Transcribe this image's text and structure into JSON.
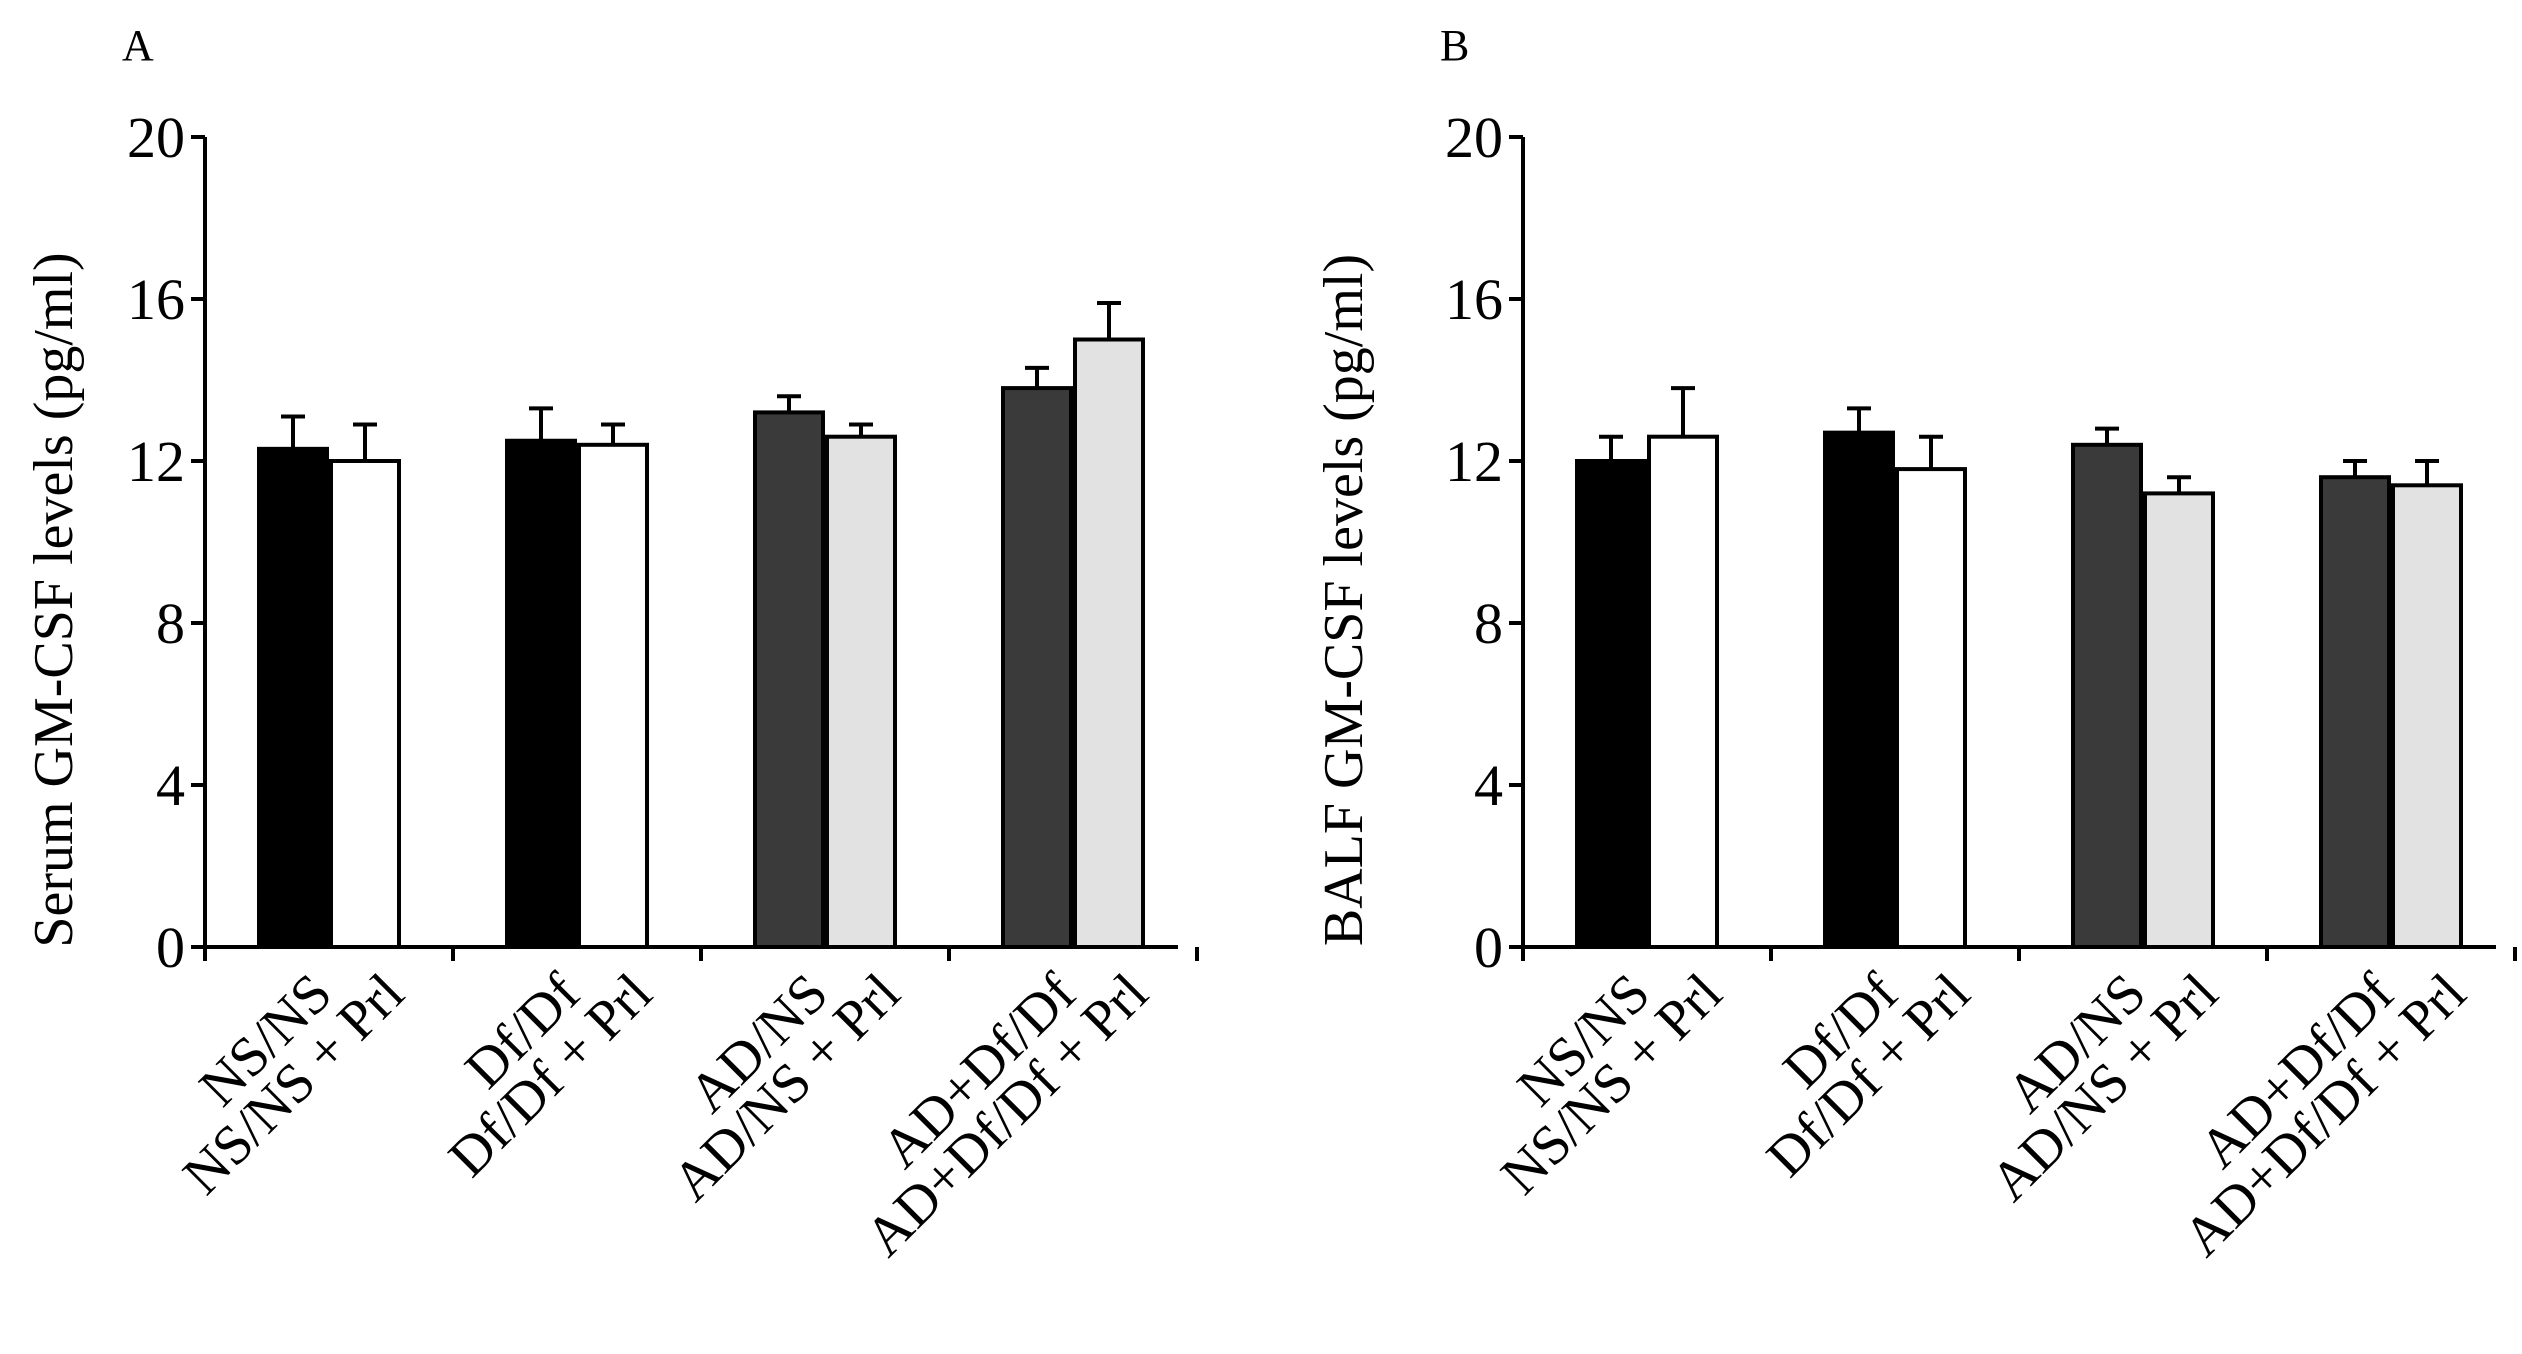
{
  "chart_data": [
    {
      "type": "bar",
      "panel": "A",
      "title": "",
      "xlabel": "",
      "ylabel": "Serum GM-CSF levels (pg/ml)",
      "ylim": [
        0,
        20
      ],
      "yticks": [
        "0",
        "4",
        "8",
        "12",
        "16",
        "20"
      ],
      "categories": [
        "NS/NS",
        "NS/NS + Prl",
        "Df/Df",
        "Df/Df + Prl",
        "AD/NS",
        "AD/NS + Prl",
        "AD+Df/Df",
        "AD+Df/Df + Prl"
      ],
      "values": [
        12.3,
        12.0,
        12.5,
        12.4,
        13.2,
        12.6,
        13.8,
        15.0
      ],
      "errors": [
        0.8,
        0.9,
        0.8,
        0.5,
        0.4,
        0.3,
        0.5,
        0.9
      ],
      "fills": [
        "#000000",
        "#ffffff",
        "#000000",
        "#ffffff",
        "#3a3a3a",
        "#e2e2e2",
        "#3a3a3a",
        "#e2e2e2"
      ],
      "grid": false
    },
    {
      "type": "bar",
      "panel": "B",
      "title": "",
      "xlabel": "",
      "ylabel": "BALF GM-CSF levels (pg/ml)",
      "ylim": [
        0,
        20
      ],
      "yticks": [
        "0",
        "4",
        "8",
        "12",
        "16",
        "20"
      ],
      "categories": [
        "NS/NS",
        "NS/NS + Prl",
        "Df/Df",
        "Df/Df + Prl",
        "AD/NS",
        "AD/NS + Prl",
        "AD+Df/Df",
        "AD+Df/Df + Prl"
      ],
      "values": [
        12.0,
        12.6,
        12.7,
        11.8,
        12.4,
        11.2,
        11.6,
        11.4
      ],
      "errors": [
        0.6,
        1.2,
        0.6,
        0.8,
        0.4,
        0.4,
        0.4,
        0.6
      ],
      "fills": [
        "#000000",
        "#ffffff",
        "#000000",
        "#ffffff",
        "#3a3a3a",
        "#e2e2e2",
        "#3a3a3a",
        "#e2e2e2"
      ],
      "grid": false
    }
  ]
}
